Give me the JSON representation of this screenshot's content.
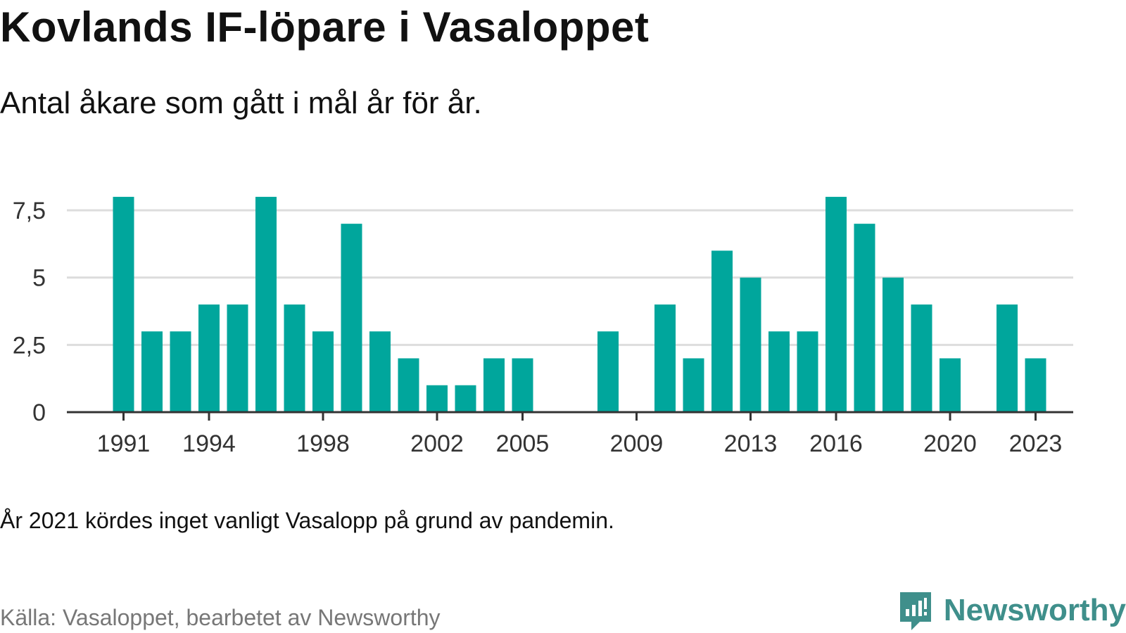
{
  "header": {
    "title": "Kovlands IF-löpare i Vasaloppet",
    "subtitle": "Antal åkare som gått i mål år för år."
  },
  "footer": {
    "note": "År 2021 kördes inget vanligt Vasalopp på grund av pandemin.",
    "source": "Källa: Vasaloppet, bearbetet av Newsworthy",
    "brand": "Newsworthy",
    "brand_icon": "newsworthy-logo-icon"
  },
  "colors": {
    "bar": "#00a69c",
    "grid": "#dddddd",
    "axis": "#333333",
    "brand": "#3f8f8b"
  },
  "chart_data": {
    "type": "bar",
    "categories": [
      1991,
      1992,
      1993,
      1994,
      1995,
      1996,
      1997,
      1998,
      1999,
      2000,
      2001,
      2002,
      2003,
      2004,
      2005,
      2006,
      2007,
      2008,
      2009,
      2010,
      2011,
      2012,
      2013,
      2014,
      2015,
      2016,
      2017,
      2018,
      2019,
      2020,
      2021,
      2022,
      2023
    ],
    "values": [
      8,
      3,
      3,
      4,
      4,
      8,
      4,
      3,
      7,
      3,
      2,
      1,
      1,
      2,
      2,
      0,
      0,
      3,
      0,
      4,
      2,
      6,
      5,
      3,
      3,
      8,
      7,
      5,
      4,
      2,
      0,
      4,
      2
    ],
    "x_tick_labels": [
      "1991",
      "1994",
      "1998",
      "2002",
      "2005",
      "2009",
      "2013",
      "2016",
      "2020",
      "2023"
    ],
    "y_ticks": [
      0,
      2.5,
      5,
      7.5
    ],
    "y_tick_labels": [
      "0",
      "2,5",
      "5",
      "7,5"
    ],
    "ylim": [
      0,
      8
    ],
    "grid": true,
    "legend": "none"
  }
}
